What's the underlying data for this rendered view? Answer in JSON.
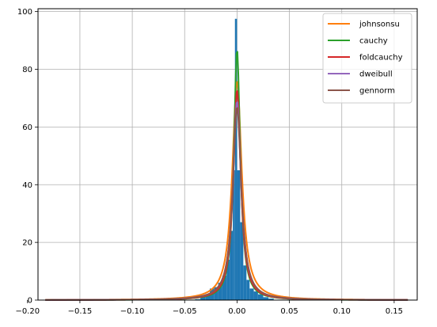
{
  "chart_data": {
    "type": "bar",
    "title": "",
    "xlabel": "",
    "ylabel": "",
    "xlim": [
      -0.19,
      0.172
    ],
    "ylim": [
      0,
      101
    ],
    "grid": true,
    "legend_placement": "top-right",
    "x_ticks": [
      -0.2,
      -0.15,
      -0.1,
      -0.05,
      0.0,
      0.05,
      0.1,
      0.15
    ],
    "x_tick_labels": [
      "−0.20",
      "−0.15",
      "−0.10",
      "−0.05",
      "0.00",
      "0.05",
      "0.10",
      "0.15"
    ],
    "y_ticks": [
      0,
      20,
      40,
      60,
      80,
      100
    ],
    "y_tick_labels": [
      "0",
      "20",
      "40",
      "60",
      "80",
      "100"
    ],
    "histogram": {
      "color": "#1f77b4",
      "bins": [
        {
          "x0": -0.04,
          "x1": -0.035,
          "height": 0.3
        },
        {
          "x0": -0.035,
          "x1": -0.03,
          "height": 1.0
        },
        {
          "x0": -0.03,
          "x1": -0.026,
          "height": 2.0
        },
        {
          "x0": -0.026,
          "x1": -0.022,
          "height": 4.0
        },
        {
          "x0": -0.022,
          "x1": -0.018,
          "height": 4.5
        },
        {
          "x0": -0.018,
          "x1": -0.014,
          "height": 6.0
        },
        {
          "x0": -0.014,
          "x1": -0.01,
          "height": 8.5
        },
        {
          "x0": -0.01,
          "x1": -0.007,
          "height": 14.0
        },
        {
          "x0": -0.007,
          "x1": -0.004,
          "height": 24.0
        },
        {
          "x0": -0.004,
          "x1": -0.002,
          "height": 45.0
        },
        {
          "x0": -0.002,
          "x1": 0.0,
          "height": 97.5
        },
        {
          "x0": 0.0,
          "x1": 0.003,
          "height": 45.0
        },
        {
          "x0": 0.003,
          "x1": 0.006,
          "height": 27.0
        },
        {
          "x0": 0.006,
          "x1": 0.009,
          "height": 12.0
        },
        {
          "x0": 0.009,
          "x1": 0.012,
          "height": 7.0
        },
        {
          "x0": 0.012,
          "x1": 0.016,
          "height": 4.0
        },
        {
          "x0": 0.016,
          "x1": 0.02,
          "height": 3.0
        },
        {
          "x0": 0.02,
          "x1": 0.025,
          "height": 2.0
        },
        {
          "x0": 0.025,
          "x1": 0.03,
          "height": 1.0
        },
        {
          "x0": 0.03,
          "x1": 0.035,
          "height": 0.5
        }
      ]
    },
    "series": [
      {
        "name": "johnsonsu",
        "color": "#ff7f0e",
        "peak": 76,
        "gamma": 0.0055
      },
      {
        "name": "cauchy",
        "color": "#2ca02c",
        "peak": 87,
        "gamma": 0.0037
      },
      {
        "name": "foldcauchy",
        "color": "#d62728",
        "peak": 73,
        "gamma": 0.0043
      },
      {
        "name": "dweibull",
        "color": "#9467bd",
        "peak": 69,
        "gamma": 0.0048
      },
      {
        "name": "gennorm",
        "color": "#8c564b",
        "peak": 67,
        "gamma": 0.0049
      }
    ],
    "curve_x_range": [
      -0.183,
      0.163
    ]
  }
}
